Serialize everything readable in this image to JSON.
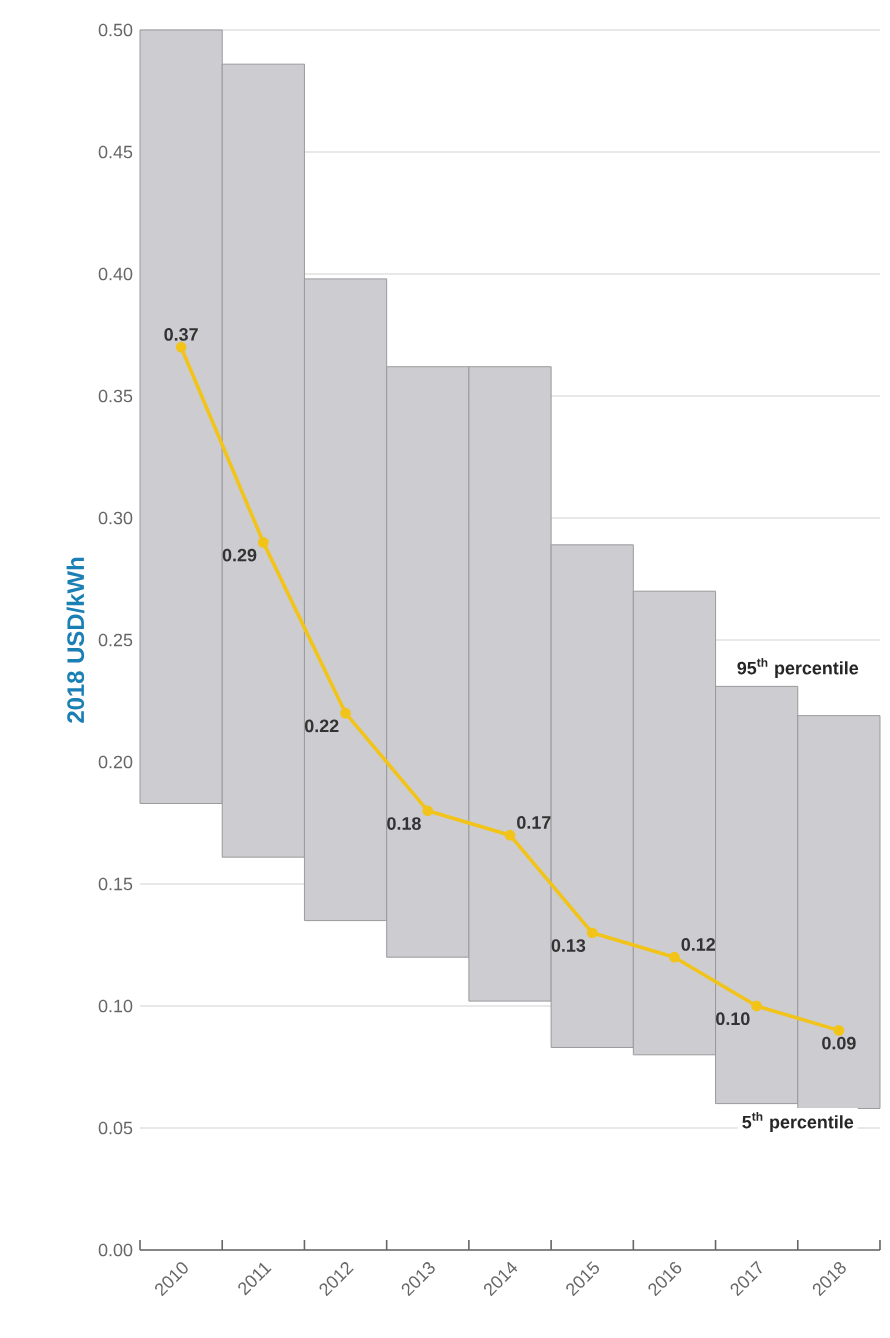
{
  "chart_data": {
    "type": "bar",
    "categories": [
      "2010",
      "2011",
      "2012",
      "2013",
      "2014",
      "2015",
      "2016",
      "2017",
      "2018"
    ],
    "ylabel": "2018 USD/kWh",
    "ylim": [
      0,
      0.5
    ],
    "yticks": [
      {
        "value": 0,
        "label": "0.00"
      },
      {
        "value": 0.05,
        "label": "0.05"
      },
      {
        "value": 0.1,
        "label": "0.10"
      },
      {
        "value": 0.15,
        "label": "0.15"
      },
      {
        "value": 0.2,
        "label": "0.20"
      },
      {
        "value": 0.25,
        "label": "0.25"
      },
      {
        "value": 0.3,
        "label": "0.30"
      },
      {
        "value": 0.35,
        "label": "0.35"
      },
      {
        "value": 0.4,
        "label": "0.40"
      },
      {
        "value": 0.45,
        "label": "0.45"
      },
      {
        "value": 0.5,
        "label": "0.50"
      }
    ],
    "grid": "y",
    "series": [
      {
        "color": "#cdcdd1",
        "base": [
          0.183,
          0.161,
          0.135,
          0.12,
          0.102,
          0.083,
          0.08,
          0.06,
          0.058
        ],
        "values": [
          0.317,
          0.325,
          0.263,
          0.242,
          0.26,
          0.206,
          0.19,
          0.171,
          0.161
        ]
      },
      {
        "type": "line",
        "color": "#f2c318",
        "marker": "circle",
        "line_style": "solid",
        "values": [
          0.37,
          0.29,
          0.22,
          0.18,
          0.17,
          0.13,
          0.12,
          0.1,
          0.09
        ],
        "value_labels": [
          "0.37",
          "0.29",
          "0.22",
          "0.18",
          "0.17",
          "0.13",
          "0.12",
          "0.10",
          "0.09"
        ]
      }
    ],
    "annotations": [
      {
        "text": "95$^{th}$ percentile",
        "x": "2017",
        "y": 0.231
      },
      {
        "text": "5$^{th}$ percentile",
        "x": "2017",
        "y": 0.06
      }
    ]
  }
}
